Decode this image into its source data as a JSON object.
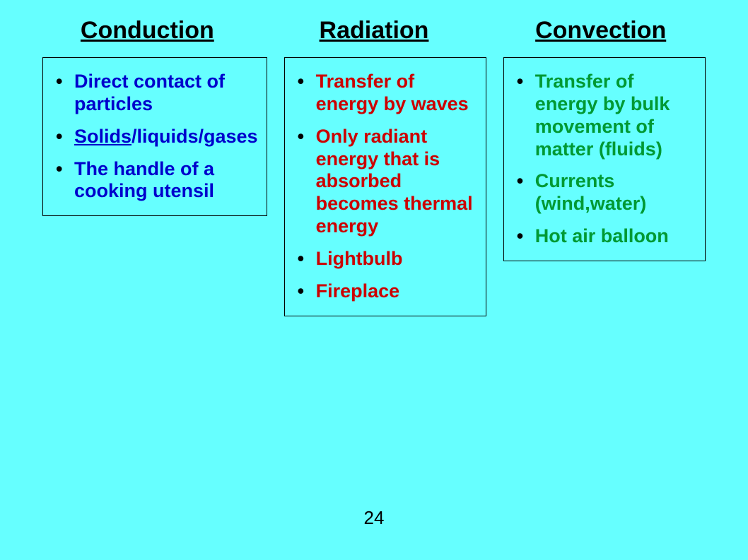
{
  "layout": {
    "background_color": "#66ffff",
    "text_color": "#000000",
    "header_fontsize": 34,
    "body_fontsize": 27,
    "font_family": "Comic Sans MS"
  },
  "columns": [
    {
      "header": "Conduction",
      "text_color": "#0000cc",
      "color_class": "c-blue",
      "items": [
        {
          "html": "Direct contact of particles"
        },
        {
          "html": "<span class=\"underline\">Solids</span>/liquids/gases"
        },
        {
          "html": "The handle of a cooking utensil"
        }
      ]
    },
    {
      "header": "Radiation",
      "text_color": "#cc0000",
      "color_class": "c-red",
      "items": [
        {
          "html": "Transfer of energy by waves"
        },
        {
          "html": "Only radiant energy that is absorbed becomes thermal energy"
        },
        {
          "html": "Lightbulb"
        },
        {
          "html": "Fireplace"
        }
      ]
    },
    {
      "header": "Convection",
      "text_color": "#009933",
      "color_class": "c-green",
      "items": [
        {
          "html": "Transfer of energy by bulk movement of matter (fluids)"
        },
        {
          "html": "Currents (wind,water)"
        },
        {
          "html": "Hot air balloon"
        }
      ]
    }
  ],
  "page_number": "24"
}
